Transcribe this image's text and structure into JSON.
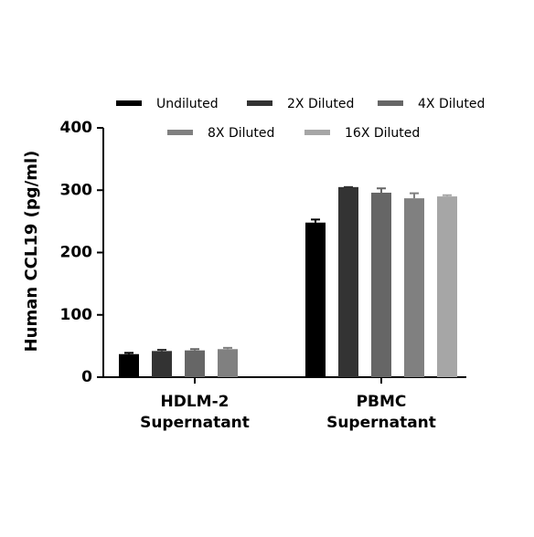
{
  "chart_data": {
    "type": "bar",
    "y_label": "Human CCL19 (pg/ml)",
    "categories": [
      [
        "HDLM-2",
        "Supernatant"
      ],
      [
        "PBMC",
        "Supernatant"
      ]
    ],
    "series": [
      {
        "name": "Undiluted",
        "color": "#000000",
        "values": [
          37,
          248
        ],
        "errors": [
          2,
          5
        ]
      },
      {
        "name": "2X Diluted",
        "color": "#333333",
        "values": [
          42,
          305
        ],
        "errors": [
          2,
          0
        ]
      },
      {
        "name": "4X Diluted",
        "color": "#666666",
        "values": [
          43,
          296
        ],
        "errors": [
          2,
          7
        ]
      },
      {
        "name": "8X Diluted",
        "color": "#808080",
        "values": [
          45,
          287
        ],
        "errors": [
          2,
          8
        ]
      },
      {
        "name": "16X Diluted",
        "color": "#a6a6a6",
        "values": [
          null,
          290
        ],
        "errors": [
          null,
          2
        ]
      }
    ],
    "ylim": [
      0,
      400
    ],
    "yticks": [
      0,
      100,
      200,
      300,
      400
    ]
  }
}
